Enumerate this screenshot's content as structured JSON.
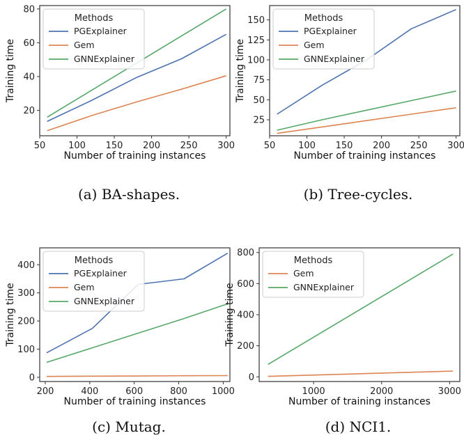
{
  "colors": {
    "PGExplainer": "#4c72b0",
    "Gem": "#dd8452",
    "GNNExplainer": "#55a868"
  },
  "chart_data": [
    {
      "type": "line",
      "caption": "(a) BA-shapes.",
      "xlabel": "Number of training instances",
      "ylabel": "Training time",
      "xlim": [
        50,
        305
      ],
      "ylim": [
        5,
        82
      ],
      "xticks": [
        50,
        100,
        150,
        200,
        250,
        300
      ],
      "yticks": [
        20,
        40,
        60,
        80
      ],
      "legend_title": "Methods",
      "legend_position": "upper left",
      "x": [
        60,
        120,
        180,
        240,
        300
      ],
      "series": [
        {
          "name": "PGExplainer",
          "values": [
            13.5,
            26,
            39.5,
            50.5,
            65
          ]
        },
        {
          "name": "Gem",
          "values": [
            8,
            17,
            25,
            32.5,
            40.5
          ]
        },
        {
          "name": "GNNExplainer",
          "values": [
            16,
            32,
            48,
            64,
            80
          ]
        }
      ]
    },
    {
      "type": "line",
      "caption": "(b) Tree-cycles.",
      "xlabel": "Number of training instances",
      "ylabel": "Training time",
      "xlim": [
        50,
        305
      ],
      "ylim": [
        5,
        168
      ],
      "xticks": [
        50,
        100,
        150,
        200,
        250,
        300
      ],
      "yticks": [
        25,
        50,
        75,
        100,
        125,
        150
      ],
      "legend_title": "Methods",
      "legend_position": "upper left",
      "x": [
        60,
        120,
        180,
        240,
        300
      ],
      "series": [
        {
          "name": "PGExplainer",
          "values": [
            32,
            68,
            100,
            139,
            163
          ]
        },
        {
          "name": "Gem",
          "values": [
            8,
            16,
            24,
            32,
            40
          ]
        },
        {
          "name": "GNNExplainer",
          "values": [
            12,
            25,
            37,
            49,
            61
          ]
        }
      ]
    },
    {
      "type": "line",
      "caption": "(c) Mutag.",
      "xlabel": "Number of training instances",
      "ylabel": "Training time",
      "xlim": [
        175,
        1030
      ],
      "ylim": [
        -15,
        460
      ],
      "xticks": [
        200,
        400,
        600,
        800,
        1000
      ],
      "yticks": [
        0,
        100,
        200,
        300,
        400
      ],
      "legend_title": "Methods",
      "legend_position": "upper left",
      "x": [
        206,
        412,
        618,
        824,
        1020
      ],
      "series": [
        {
          "name": "PGExplainer",
          "values": [
            87,
            174,
            330,
            350,
            441
          ]
        },
        {
          "name": "Gem",
          "values": [
            3,
            4,
            4.5,
            5.5,
            6
          ]
        },
        {
          "name": "GNNExplainer",
          "values": [
            53,
            105,
            157,
            209,
            261
          ]
        }
      ]
    },
    {
      "type": "line",
      "caption": "(d) NCI1.",
      "xlabel": "Number of training instances",
      "ylabel": "Training time",
      "xlim": [
        200,
        3150
      ],
      "ylim": [
        -30,
        830
      ],
      "xticks": [
        1000,
        2000,
        3000
      ],
      "yticks": [
        0,
        200,
        400,
        600,
        800
      ],
      "legend_title": "Methods",
      "legend_position": "upper left",
      "x": [
        330,
        3050
      ],
      "series": [
        {
          "name": "Gem",
          "values": [
            3,
            37
          ]
        },
        {
          "name": "GNNExplainer",
          "values": [
            80,
            790
          ]
        }
      ]
    }
  ]
}
